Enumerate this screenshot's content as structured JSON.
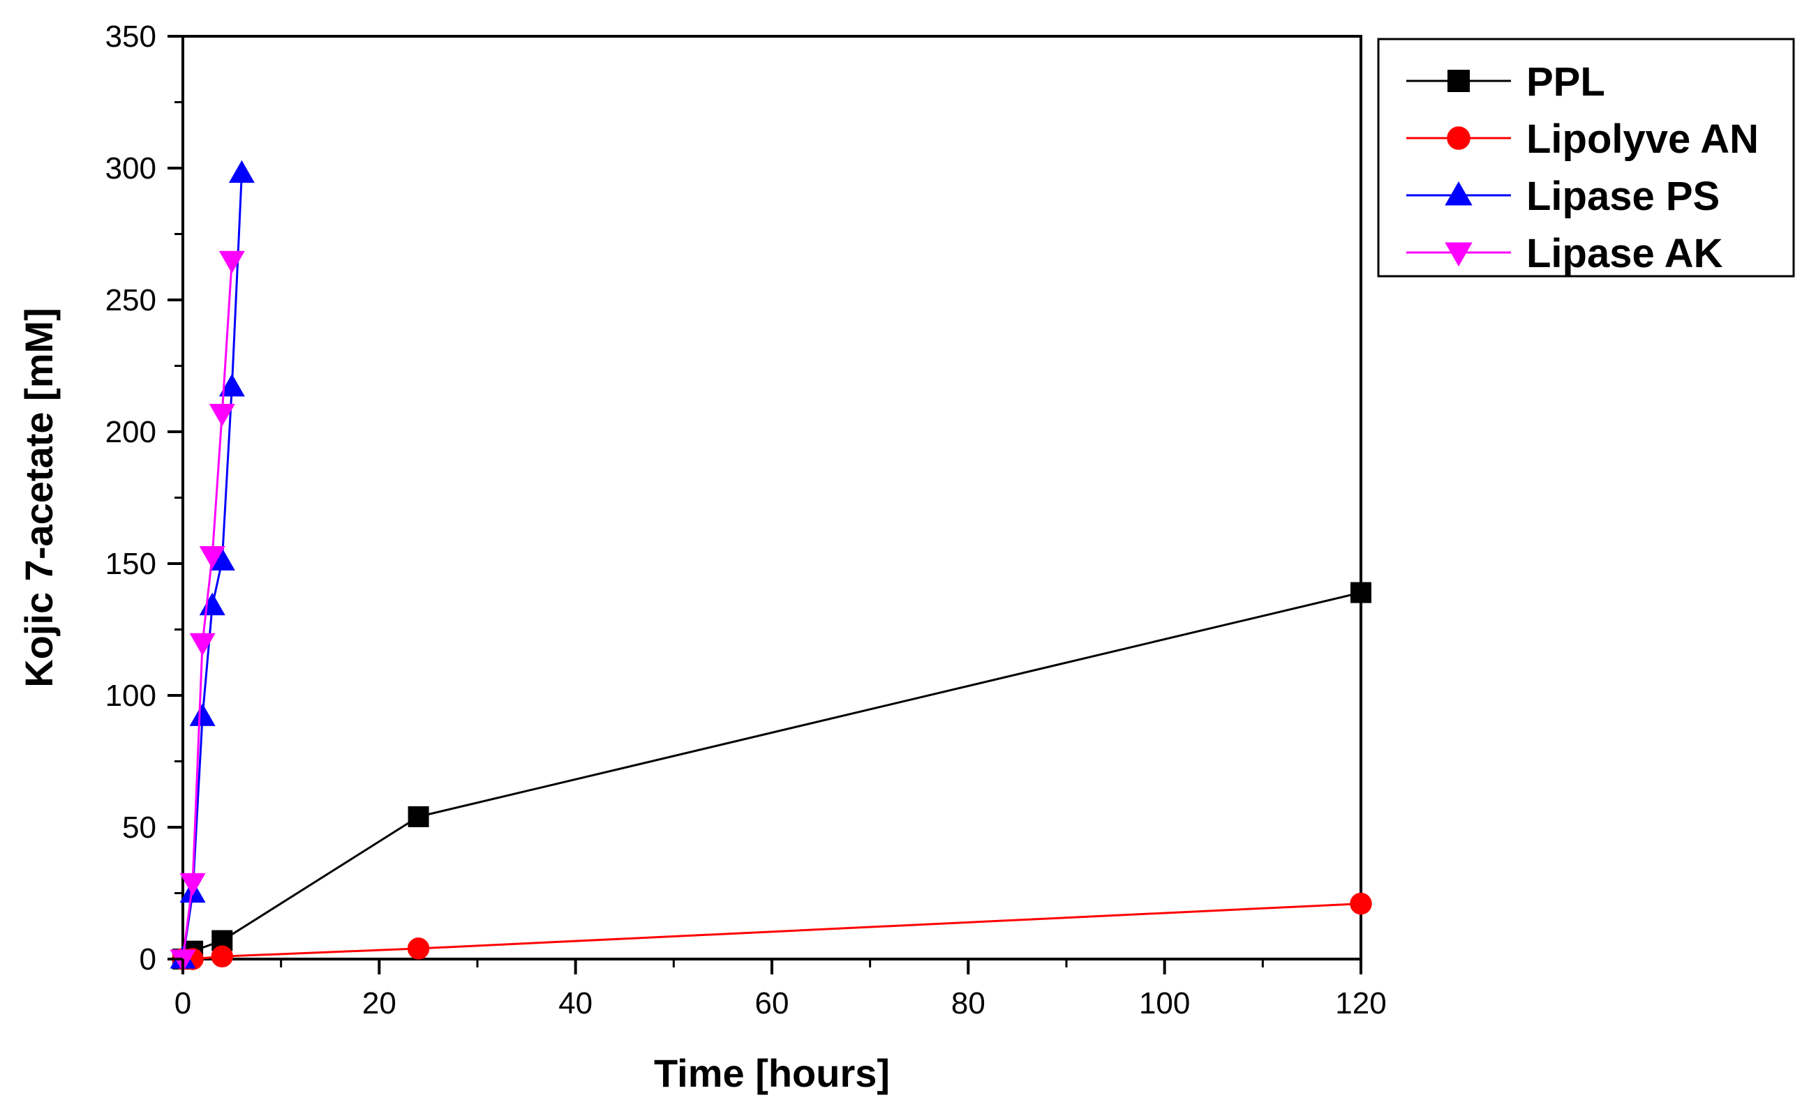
{
  "chart_data": {
    "type": "line",
    "title": "",
    "xlabel": "Time [hours]",
    "ylabel": "Kojic 7-acetate [mM]",
    "xlim": [
      0,
      120
    ],
    "ylim": [
      0,
      350
    ],
    "xticks": [
      0,
      20,
      40,
      60,
      80,
      100,
      120
    ],
    "yticks": [
      0,
      50,
      100,
      150,
      200,
      250,
      300,
      350
    ],
    "grid": false,
    "legend_position": "outside-top-right",
    "series": [
      {
        "name": "PPL",
        "color": "#000000",
        "marker": "square",
        "x": [
          0,
          1,
          4,
          24,
          120
        ],
        "y": [
          0,
          3,
          7,
          54,
          139
        ]
      },
      {
        "name": "Lipolyve AN",
        "color": "#ff0000",
        "marker": "circle",
        "x": [
          0,
          1,
          4,
          24,
          120
        ],
        "y": [
          0,
          0,
          1,
          4,
          21
        ]
      },
      {
        "name": "Lipase PS",
        "color": "#0000ff",
        "marker": "triangle-up",
        "x": [
          0,
          1,
          2,
          3,
          4,
          5,
          6
        ],
        "y": [
          0,
          25,
          92,
          134,
          151,
          217,
          298
        ]
      },
      {
        "name": "Lipase AK",
        "color": "#ff00ff",
        "marker": "triangle-down",
        "x": [
          0,
          1,
          2,
          3,
          4,
          5
        ],
        "y": [
          0,
          29,
          120,
          153,
          207,
          265
        ]
      }
    ]
  }
}
